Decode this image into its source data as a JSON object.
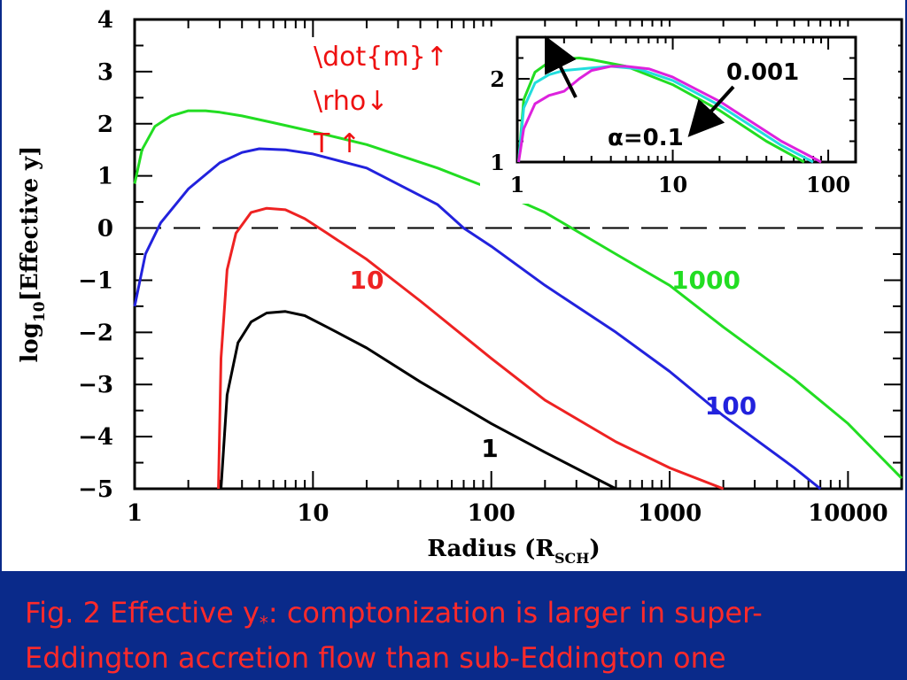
{
  "chart_data": [
    {
      "type": "line",
      "xlabel_main": "Radius (R",
      "xlabel_sub": "SCH",
      "xlabel_close": ")",
      "ylabel_main": "log",
      "ylabel_sub": "10",
      "ylabel_rest": "[Effective y]",
      "x_scale": "log",
      "xlim": [
        1,
        20000
      ],
      "ylim": [
        -5,
        4
      ],
      "x_tick_labels": [
        "1",
        "10",
        "100",
        "1000",
        "10000"
      ],
      "x_ticks": [
        1,
        10,
        100,
        1000,
        10000
      ],
      "y_tick_labels": [
        "4",
        "3",
        "2",
        "1",
        "0",
        "−1",
        "−2",
        "−3",
        "−4",
        "−5"
      ],
      "y_ticks": [
        4,
        3,
        2,
        1,
        0,
        -1,
        -2,
        -3,
        -4,
        -5
      ],
      "reference_line": {
        "y": 0,
        "style": "dashed"
      },
      "series": [
        {
          "name": "1000",
          "color": "#22dd22",
          "x": [
            1,
            1.1,
            1.3,
            1.6,
            2,
            2.5,
            3,
            4,
            6,
            10,
            20,
            50,
            100,
            200,
            500,
            1000,
            2000,
            5000,
            10000,
            20000
          ],
          "y": [
            0.85,
            1.5,
            1.95,
            2.15,
            2.25,
            2.25,
            2.22,
            2.15,
            2.02,
            1.85,
            1.6,
            1.15,
            0.75,
            0.3,
            -0.5,
            -1.1,
            -1.9,
            -2.9,
            -3.75,
            -4.8
          ]
        },
        {
          "name": "100",
          "color": "#2222dd",
          "x": [
            1,
            1.15,
            1.4,
            2,
            3,
            4,
            5,
            7,
            10,
            20,
            50,
            70,
            100,
            200,
            500,
            1000,
            2000,
            5000,
            7000
          ],
          "y": [
            -1.5,
            -0.5,
            0.1,
            0.75,
            1.25,
            1.45,
            1.52,
            1.5,
            1.42,
            1.15,
            0.45,
            0.0,
            -0.35,
            -1.1,
            -2.0,
            -2.75,
            -3.6,
            -4.6,
            -5.0
          ]
        },
        {
          "name": "10",
          "color": "#ee2222",
          "x": [
            2.95,
            3.05,
            3.3,
            3.7,
            4.5,
            5.5,
            7,
            9,
            12,
            20,
            40,
            100,
            200,
            500,
            1000,
            2000
          ],
          "y": [
            -5,
            -2.5,
            -0.8,
            -0.1,
            0.3,
            0.38,
            0.35,
            0.18,
            -0.1,
            -0.6,
            -1.4,
            -2.5,
            -3.3,
            -4.1,
            -4.6,
            -5.0
          ]
        },
        {
          "name": "1",
          "color": "#000000",
          "x": [
            3.05,
            3.3,
            3.8,
            4.5,
            5.5,
            7,
            9,
            12,
            20,
            40,
            100,
            200,
            500
          ],
          "y": [
            -5,
            -3.2,
            -2.2,
            -1.8,
            -1.63,
            -1.6,
            -1.68,
            -1.9,
            -2.3,
            -2.95,
            -3.75,
            -4.3,
            -5.0
          ]
        }
      ],
      "annotations": {
        "dot_m": "\\dot{m}↑",
        "rho": "\\rho↓",
        "t": "T ↑"
      }
    },
    {
      "type": "line",
      "inset": true,
      "x_scale": "log",
      "xlim": [
        1,
        150
      ],
      "ylim": [
        1,
        2.5
      ],
      "x_tick_labels": [
        "1",
        "10",
        "100"
      ],
      "x_ticks": [
        1,
        10,
        100
      ],
      "y_tick_labels": [
        "2",
        "1"
      ],
      "y_ticks": [
        2,
        1
      ],
      "labels": {
        "alpha": "α=0.1",
        "small_alpha": "0.001"
      },
      "series": [
        {
          "color": "#22dd22",
          "x": [
            1.02,
            1.1,
            1.3,
            1.6,
            2,
            2.5,
            3,
            5,
            10,
            20,
            40,
            70
          ],
          "y": [
            1.0,
            1.75,
            2.08,
            2.2,
            2.24,
            2.25,
            2.23,
            2.15,
            1.93,
            1.62,
            1.25,
            1.0
          ]
        },
        {
          "color": "#22dddd",
          "x": [
            1.02,
            1.1,
            1.3,
            1.6,
            2,
            3,
            4,
            6,
            10,
            20,
            50,
            80
          ],
          "y": [
            1.0,
            1.65,
            1.95,
            2.05,
            2.1,
            2.13,
            2.15,
            2.12,
            1.98,
            1.68,
            1.2,
            1.0
          ]
        },
        {
          "color": "#dd22dd",
          "x": [
            1.02,
            1.1,
            1.3,
            1.6,
            2,
            2.5,
            3,
            4,
            5,
            7,
            10,
            20,
            50,
            90
          ],
          "y": [
            1.0,
            1.4,
            1.7,
            1.8,
            1.85,
            2.0,
            2.1,
            2.15,
            2.15,
            2.12,
            2.02,
            1.73,
            1.25,
            1.0
          ]
        }
      ]
    }
  ],
  "caption": {
    "prefix": "Fig. 2 Effective y",
    "subscript": "*",
    "line1_rest": ": comptonization is larger in super-",
    "line2": "Eddington accretion flow than sub-Eddington one"
  }
}
